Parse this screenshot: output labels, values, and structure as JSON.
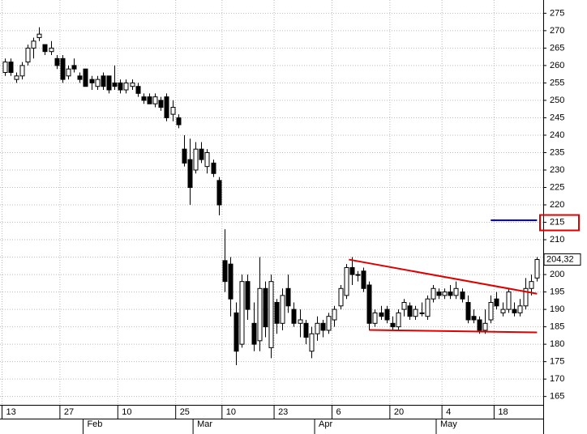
{
  "chart_data": {
    "type": "candlestick",
    "categories": [
      "13",
      null,
      null,
      null,
      null,
      null,
      null,
      null,
      null,
      null,
      "27",
      null,
      null,
      null,
      null,
      null,
      null,
      null,
      null,
      null,
      "10",
      null,
      null,
      null,
      null,
      null,
      null,
      null,
      null,
      null,
      "25",
      null,
      null,
      null,
      null,
      null,
      null,
      null,
      "10",
      null,
      null,
      null,
      null,
      null,
      null,
      null,
      null,
      "23",
      null,
      null,
      null,
      null,
      null,
      null,
      null,
      null,
      null,
      "6",
      null,
      null,
      null,
      null,
      null,
      null,
      null,
      null,
      null,
      "20",
      null,
      null,
      null,
      null,
      null,
      null,
      null,
      null,
      "4",
      null,
      null,
      null,
      null,
      null,
      null,
      null,
      null,
      "18",
      null,
      null,
      null,
      null,
      null,
      null,
      null
    ],
    "months": [
      null,
      null,
      null,
      null,
      null,
      null,
      null,
      null,
      null,
      null,
      null,
      null,
      null,
      null,
      "Feb",
      null,
      null,
      null,
      null,
      null,
      null,
      null,
      null,
      null,
      null,
      null,
      null,
      null,
      null,
      null,
      null,
      null,
      null,
      "Mar",
      null,
      null,
      null,
      null,
      null,
      null,
      null,
      null,
      null,
      null,
      null,
      null,
      null,
      null,
      null,
      null,
      null,
      null,
      null,
      null,
      "Apr",
      null,
      null,
      null,
      null,
      null,
      null,
      null,
      null,
      null,
      null,
      null,
      null,
      null,
      null,
      null,
      null,
      null,
      null,
      null,
      null,
      "May",
      null,
      null,
      null,
      null,
      null,
      null,
      null,
      null,
      null,
      null,
      null,
      null,
      null,
      null,
      null,
      null,
      null
    ],
    "ohlc": [
      [
        258,
        262,
        257,
        261
      ],
      [
        261,
        262,
        257,
        258
      ],
      [
        256,
        258,
        255,
        257
      ],
      [
        257,
        261,
        256,
        260
      ],
      [
        261,
        266,
        260,
        265
      ],
      [
        265,
        268,
        262,
        267
      ],
      [
        268,
        271,
        267,
        269
      ],
      [
        266,
        266,
        263,
        264
      ],
      [
        264,
        267,
        263,
        265
      ],
      [
        262,
        263,
        259,
        260
      ],
      [
        262,
        263,
        255,
        256
      ],
      [
        257,
        260,
        256,
        259
      ],
      [
        260,
        262,
        258,
        259
      ],
      [
        257,
        258,
        255,
        256
      ],
      [
        259,
        259,
        254,
        254
      ],
      [
        256,
        257,
        253,
        255
      ],
      [
        254,
        257,
        253,
        256
      ],
      [
        257,
        258,
        253,
        254
      ],
      [
        257,
        257,
        252,
        253
      ],
      [
        255,
        260,
        253,
        254
      ],
      [
        255,
        256,
        252,
        253
      ],
      [
        253,
        256,
        252,
        255
      ],
      [
        254,
        256,
        253,
        255
      ],
      [
        254,
        255,
        251,
        252
      ],
      [
        251,
        252,
        249,
        250
      ],
      [
        251,
        252,
        249,
        249
      ],
      [
        249,
        252,
        248,
        251
      ],
      [
        250,
        251,
        247,
        248
      ],
      [
        251,
        252,
        244,
        245
      ],
      [
        246,
        250,
        244,
        248
      ],
      [
        245,
        246,
        242,
        243
      ],
      [
        236,
        240,
        231,
        232
      ],
      [
        233,
        239,
        220,
        225
      ],
      [
        230,
        238,
        229,
        236
      ],
      [
        236,
        238,
        232,
        233
      ],
      [
        231,
        236,
        229,
        235
      ],
      [
        232,
        233,
        228,
        229
      ],
      [
        227,
        228,
        217,
        220
      ],
      [
        204,
        213,
        195,
        198
      ],
      [
        203,
        205,
        188,
        193
      ],
      [
        189,
        192,
        174,
        178
      ],
      [
        180,
        200,
        179,
        198
      ],
      [
        198,
        200,
        187,
        190
      ],
      [
        186,
        192,
        178,
        180
      ],
      [
        181,
        205,
        178,
        196
      ],
      [
        196,
        198,
        182,
        185
      ],
      [
        179,
        200,
        176,
        198
      ],
      [
        192,
        193,
        183,
        186
      ],
      [
        186,
        196,
        184,
        194
      ],
      [
        196,
        200,
        189,
        191
      ],
      [
        190,
        192,
        185,
        186
      ],
      [
        186,
        190,
        182,
        187
      ],
      [
        186,
        187,
        180,
        182
      ],
      [
        178,
        185,
        176,
        183
      ],
      [
        183,
        188,
        181,
        186
      ],
      [
        186,
        187,
        182,
        184
      ],
      [
        184,
        189,
        183,
        188
      ],
      [
        187,
        191,
        185,
        190
      ],
      [
        191,
        197,
        190,
        196
      ],
      [
        194,
        203,
        193,
        202
      ],
      [
        202,
        205,
        197,
        200
      ],
      [
        200,
        201,
        198,
        200
      ],
      [
        201,
        202,
        195,
        196
      ],
      [
        197,
        198,
        184,
        186
      ],
      [
        186,
        190,
        185,
        189
      ],
      [
        189,
        191,
        187,
        188
      ],
      [
        190,
        191,
        186,
        187
      ],
      [
        186,
        188,
        184,
        185
      ],
      [
        185,
        190,
        184,
        189
      ],
      [
        190,
        193,
        188,
        192
      ],
      [
        191,
        192,
        187,
        188
      ],
      [
        188,
        191,
        187,
        190
      ],
      [
        189,
        192,
        188,
        189
      ],
      [
        188,
        194,
        187,
        193
      ],
      [
        193,
        197,
        192,
        196
      ],
      [
        195,
        196,
        193,
        194
      ],
      [
        194,
        196,
        193,
        195
      ],
      [
        195,
        197,
        193,
        194
      ],
      [
        194,
        198,
        193,
        196
      ],
      [
        195,
        196,
        192,
        193
      ],
      [
        192,
        194,
        186,
        187
      ],
      [
        188,
        190,
        186,
        187
      ],
      [
        187,
        188,
        183,
        184
      ],
      [
        184,
        190,
        183,
        186
      ],
      [
        187,
        194,
        186,
        192
      ],
      [
        193,
        195,
        190,
        191
      ],
      [
        189,
        192,
        188,
        190
      ],
      [
        190,
        196,
        189,
        195
      ],
      [
        190,
        192,
        188,
        189
      ],
      [
        189,
        193,
        188,
        191
      ],
      [
        191,
        199,
        190,
        196
      ],
      [
        196,
        200,
        194,
        198
      ],
      [
        199,
        205,
        198,
        204.32
      ]
    ],
    "last_price_label": "204,32",
    "ylim": [
      162.6,
      278.8
    ],
    "yticks": [
      165,
      170,
      175,
      180,
      185,
      190,
      195,
      200,
      205,
      210,
      215,
      220,
      225,
      230,
      235,
      240,
      245,
      250,
      255,
      260,
      265,
      270,
      275
    ],
    "grid": true,
    "annotations": [
      {
        "color": "#e00000",
        "points": [
          [
            59.5,
            204.3
          ],
          [
            92,
            194.5
          ]
        ]
      },
      {
        "color": "#e00000",
        "points": [
          [
            63,
            184.1
          ],
          [
            92,
            183.4
          ]
        ]
      },
      {
        "color": "#0000ff",
        "points": [
          [
            84,
            215.6
          ],
          [
            92,
            215.6
          ]
        ]
      }
    ],
    "highlight": {
      "value": 215,
      "color": "#e00000"
    }
  }
}
